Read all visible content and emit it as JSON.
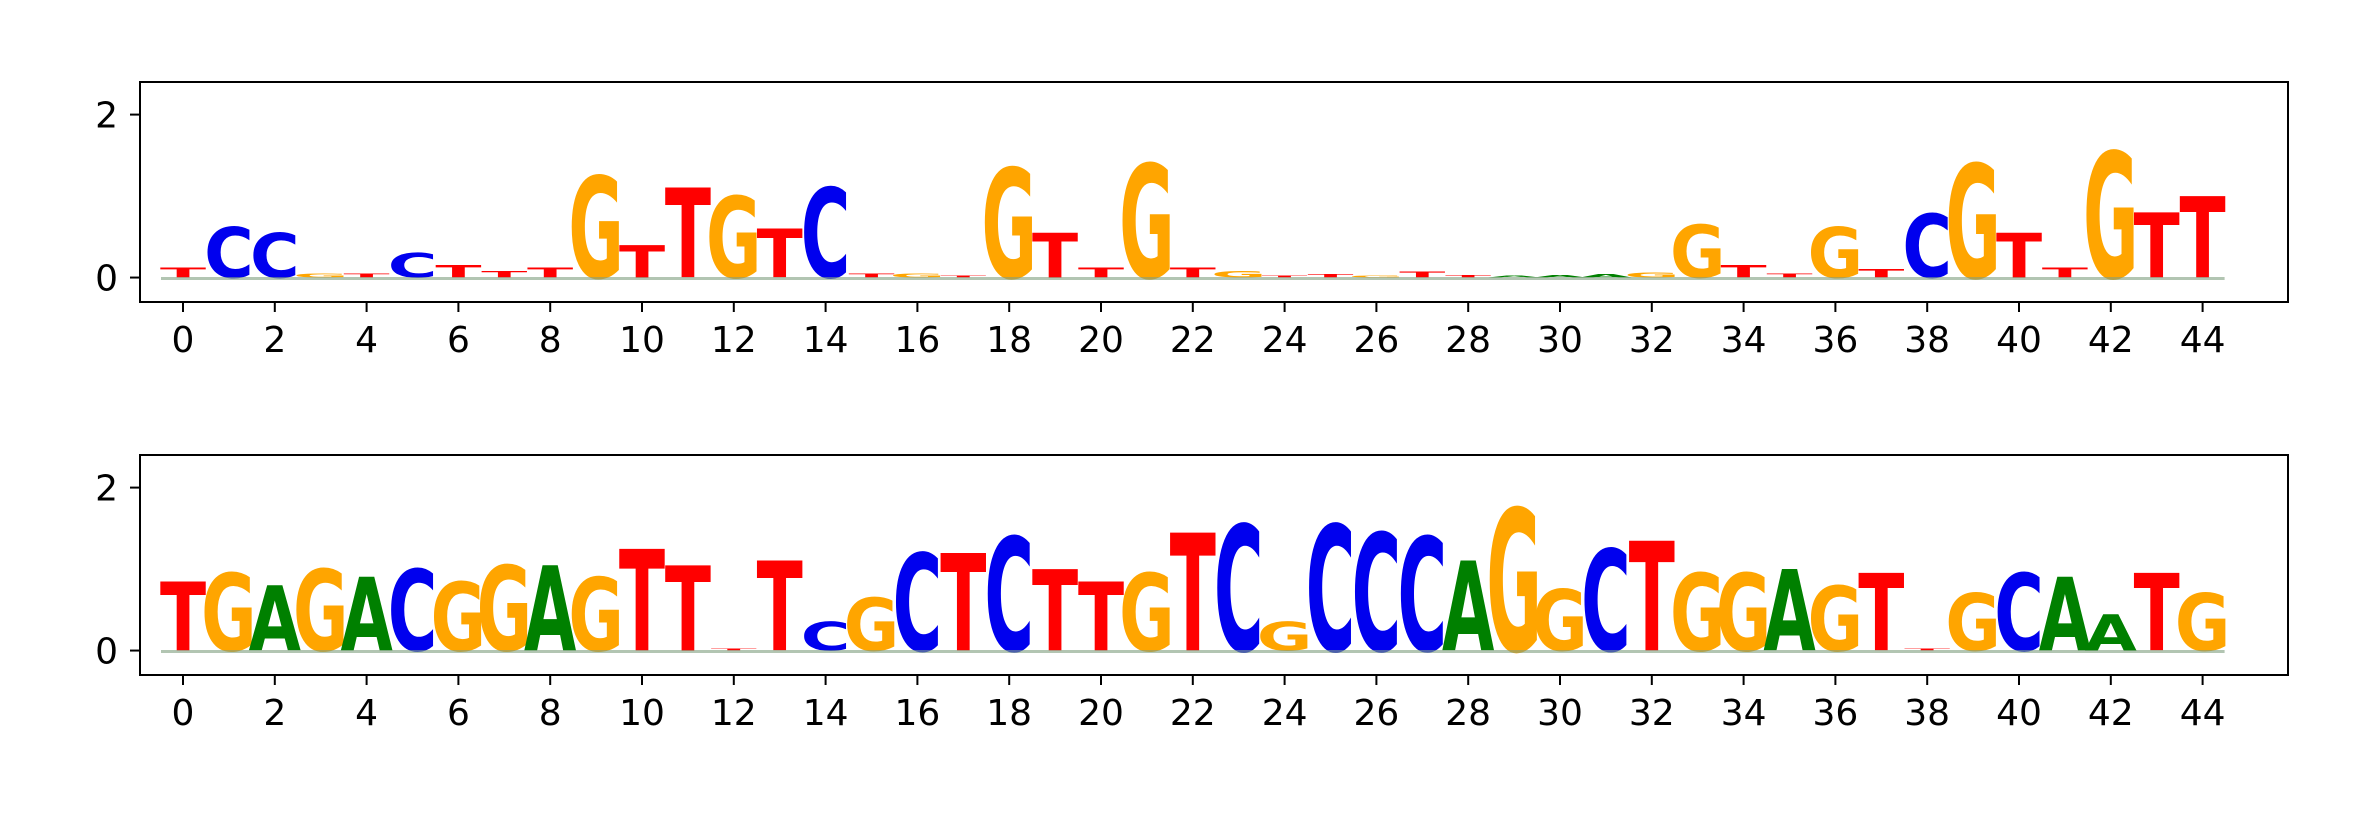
{
  "chart_data": [
    {
      "type": "sequence-logo",
      "ylim": [
        -0.3,
        2.4
      ],
      "yticks": [
        "0",
        "2"
      ],
      "xticks": [
        "0",
        "2",
        "4",
        "6",
        "8",
        "10",
        "12",
        "14",
        "16",
        "18",
        "20",
        "22",
        "24",
        "26",
        "28",
        "30",
        "32",
        "34",
        "36",
        "38",
        "40",
        "42",
        "44"
      ],
      "colors": {
        "A": "#008000",
        "C": "#0000ee",
        "G": "#ffa500",
        "T": "#ff0000"
      },
      "positions": [
        {
          "x": 0,
          "letter": "T",
          "height": 0.12
        },
        {
          "x": 1,
          "letter": "C",
          "height": 0.62
        },
        {
          "x": 2,
          "letter": "C",
          "height": 0.55
        },
        {
          "x": 3,
          "letter": "G",
          "height": 0.05
        },
        {
          "x": 4,
          "letter": "T",
          "height": 0.05
        },
        {
          "x": 5,
          "letter": "C",
          "height": 0.3
        },
        {
          "x": 6,
          "letter": "T",
          "height": 0.15
        },
        {
          "x": 7,
          "letter": "T",
          "height": 0.08
        },
        {
          "x": 8,
          "letter": "T",
          "height": 0.12
        },
        {
          "x": 9,
          "letter": "G",
          "height": 1.25
        },
        {
          "x": 10,
          "letter": "T",
          "height": 0.4
        },
        {
          "x": 11,
          "letter": "T",
          "height": 1.1
        },
        {
          "x": 12,
          "letter": "G",
          "height": 1.0
        },
        {
          "x": 13,
          "letter": "T",
          "height": 0.6
        },
        {
          "x": 14,
          "letter": "C",
          "height": 1.1
        },
        {
          "x": 15,
          "letter": "T",
          "height": 0.05
        },
        {
          "x": 16,
          "letter": "G",
          "height": 0.05
        },
        {
          "x": 17,
          "letter": "T",
          "height": 0.02
        },
        {
          "x": 18,
          "letter": "G",
          "height": 1.35
        },
        {
          "x": 19,
          "letter": "T",
          "height": 0.55
        },
        {
          "x": 20,
          "letter": "T",
          "height": 0.12
        },
        {
          "x": 21,
          "letter": "G",
          "height": 1.4
        },
        {
          "x": 22,
          "letter": "T",
          "height": 0.12
        },
        {
          "x": 23,
          "letter": "G",
          "height": 0.08
        },
        {
          "x": 24,
          "letter": "T",
          "height": 0.02
        },
        {
          "x": 25,
          "letter": "T",
          "height": 0.04
        },
        {
          "x": 26,
          "letter": "G",
          "height": 0.02
        },
        {
          "x": 27,
          "letter": "T",
          "height": 0.07
        },
        {
          "x": 28,
          "letter": "T",
          "height": 0.03
        },
        {
          "x": 29,
          "letter": "A",
          "height": 0.02
        },
        {
          "x": 30,
          "letter": "A",
          "height": 0.03
        },
        {
          "x": 31,
          "letter": "A",
          "height": 0.04
        },
        {
          "x": 32,
          "letter": "G",
          "height": 0.06
        },
        {
          "x": 33,
          "letter": "G",
          "height": 0.65
        },
        {
          "x": 34,
          "letter": "T",
          "height": 0.15
        },
        {
          "x": 35,
          "letter": "T",
          "height": 0.05
        },
        {
          "x": 36,
          "letter": "G",
          "height": 0.62
        },
        {
          "x": 37,
          "letter": "T",
          "height": 0.1
        },
        {
          "x": 38,
          "letter": "C",
          "height": 0.78
        },
        {
          "x": 39,
          "letter": "G",
          "height": 1.4
        },
        {
          "x": 40,
          "letter": "T",
          "height": 0.55
        },
        {
          "x": 41,
          "letter": "T",
          "height": 0.12
        },
        {
          "x": 42,
          "letter": "G",
          "height": 1.55
        },
        {
          "x": 43,
          "letter": "T",
          "height": 0.8
        },
        {
          "x": 44,
          "letter": "T",
          "height": 1.0
        }
      ]
    },
    {
      "type": "sequence-logo",
      "ylim": [
        -0.3,
        2.4
      ],
      "yticks": [
        "0",
        "2"
      ],
      "xticks": [
        "0",
        "2",
        "4",
        "6",
        "8",
        "10",
        "12",
        "14",
        "16",
        "18",
        "20",
        "22",
        "24",
        "26",
        "28",
        "30",
        "32",
        "34",
        "36",
        "38",
        "40",
        "42",
        "44"
      ],
      "colors": {
        "A": "#008000",
        "C": "#0000ee",
        "G": "#ffa500",
        "T": "#ff0000"
      },
      "positions": [
        {
          "x": 0,
          "letter": "T",
          "height": 0.85
        },
        {
          "x": 1,
          "letter": "G",
          "height": 0.95
        },
        {
          "x": 2,
          "letter": "A",
          "height": 0.8
        },
        {
          "x": 3,
          "letter": "G",
          "height": 1.0
        },
        {
          "x": 4,
          "letter": "A",
          "height": 0.9
        },
        {
          "x": 5,
          "letter": "C",
          "height": 1.0
        },
        {
          "x": 6,
          "letter": "G",
          "height": 0.85
        },
        {
          "x": 7,
          "letter": "G",
          "height": 1.05
        },
        {
          "x": 8,
          "letter": "A",
          "height": 1.05
        },
        {
          "x": 9,
          "letter": "G",
          "height": 0.9
        },
        {
          "x": 10,
          "letter": "T",
          "height": 1.25
        },
        {
          "x": 11,
          "letter": "T",
          "height": 1.05
        },
        {
          "x": 12,
          "letter": "T",
          "height": 0.02
        },
        {
          "x": 13,
          "letter": "T",
          "height": 1.1
        },
        {
          "x": 14,
          "letter": "C",
          "height": 0.35
        },
        {
          "x": 15,
          "letter": "G",
          "height": 0.65
        },
        {
          "x": 16,
          "letter": "C",
          "height": 1.2
        },
        {
          "x": 17,
          "letter": "T",
          "height": 1.2
        },
        {
          "x": 18,
          "letter": "C",
          "height": 1.4
        },
        {
          "x": 19,
          "letter": "T",
          "height": 1.0
        },
        {
          "x": 20,
          "letter": "T",
          "height": 0.85
        },
        {
          "x": 21,
          "letter": "G",
          "height": 0.95
        },
        {
          "x": 22,
          "letter": "T",
          "height": 1.45
        },
        {
          "x": 23,
          "letter": "C",
          "height": 1.55
        },
        {
          "x": 24,
          "letter": "G",
          "height": 0.35
        },
        {
          "x": 25,
          "letter": "C",
          "height": 1.55
        },
        {
          "x": 26,
          "letter": "C",
          "height": 1.45
        },
        {
          "x": 27,
          "letter": "C",
          "height": 1.4
        },
        {
          "x": 28,
          "letter": "A",
          "height": 1.1
        },
        {
          "x": 29,
          "letter": "G",
          "height": 1.75
        },
        {
          "x": 30,
          "letter": "G",
          "height": 0.75
        },
        {
          "x": 31,
          "letter": "C",
          "height": 1.25
        },
        {
          "x": 32,
          "letter": "T",
          "height": 1.35
        },
        {
          "x": 33,
          "letter": "G",
          "height": 0.95
        },
        {
          "x": 34,
          "letter": "G",
          "height": 0.95
        },
        {
          "x": 35,
          "letter": "A",
          "height": 1.0
        },
        {
          "x": 36,
          "letter": "G",
          "height": 0.8
        },
        {
          "x": 37,
          "letter": "T",
          "height": 0.95
        },
        {
          "x": 38,
          "letter": "T",
          "height": 0.02
        },
        {
          "x": 39,
          "letter": "G",
          "height": 0.7
        },
        {
          "x": 40,
          "letter": "C",
          "height": 0.95
        },
        {
          "x": 41,
          "letter": "A",
          "height": 0.9
        },
        {
          "x": 42,
          "letter": "A",
          "height": 0.45
        },
        {
          "x": 43,
          "letter": "T",
          "height": 0.95
        },
        {
          "x": 44,
          "letter": "G",
          "height": 0.7
        }
      ]
    }
  ]
}
